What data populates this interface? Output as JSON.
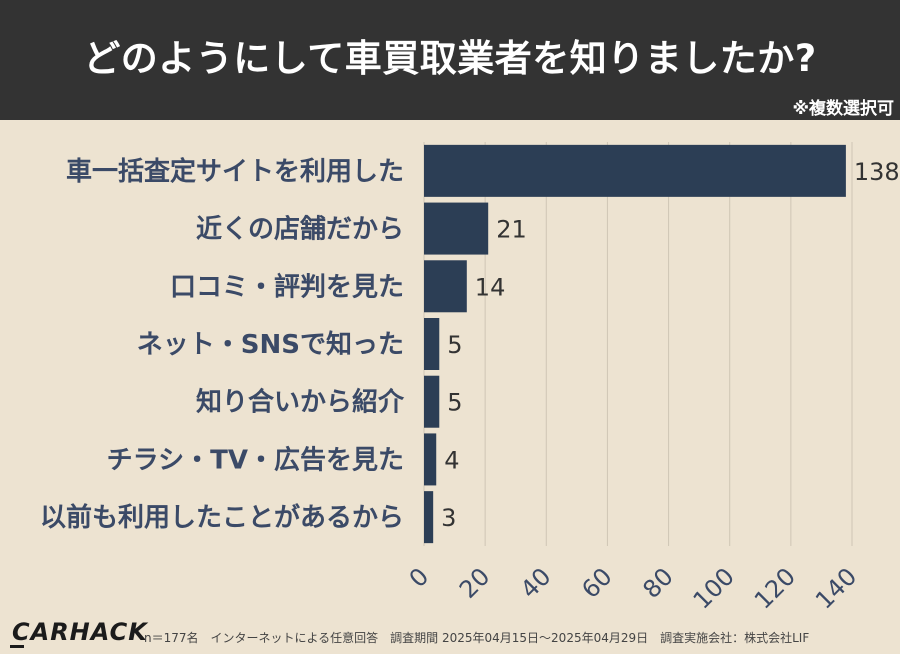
{
  "header": {
    "title": "どのようにして車買取業者を知りましたか?",
    "note": "※複数選択可"
  },
  "chart_data": {
    "type": "bar",
    "orientation": "horizontal",
    "categories": [
      "車一括査定サイトを利用した",
      "近くの店舗だから",
      "口コミ・評判を見た",
      "ネット・SNSで知った",
      "知り合いから紹介",
      "チラシ・TV・広告を見た",
      "以前も利用したことがあるから"
    ],
    "values": [
      138,
      21,
      14,
      5,
      5,
      4,
      3
    ],
    "xlim": [
      0,
      140
    ],
    "xticks": [
      0,
      20,
      40,
      60,
      80,
      100,
      120,
      140
    ],
    "grid": true,
    "bar_color": "#2c3e55"
  },
  "footer": {
    "logo": "CARHACK",
    "footnote": "n＝177名　インターネットによる任意回答　調査期間 2025年04月15日～2025年04月29日　調査実施会社：株式会社LIF"
  }
}
